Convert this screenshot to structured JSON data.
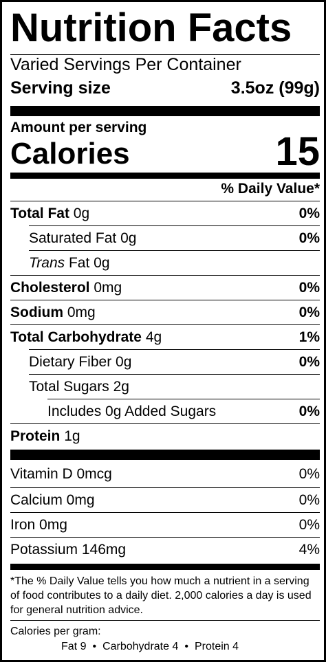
{
  "title": "Nutrition Facts",
  "servings_per_container": "Varied Servings Per Container",
  "serving_size": {
    "label": "Serving size",
    "value": "3.5oz (99g)"
  },
  "amount_per_serving": "Amount per serving",
  "calories": {
    "label": "Calories",
    "value": "15"
  },
  "daily_value_header": "% Daily Value*",
  "nutrients": {
    "total_fat": {
      "label": "Total Fat",
      "amount": "0g",
      "dv": "0%"
    },
    "saturated_fat": {
      "label": "Saturated Fat",
      "amount": "0g",
      "dv": "0%"
    },
    "trans_fat": {
      "label": "Trans",
      "label_suffix": "Fat",
      "amount": "0g"
    },
    "cholesterol": {
      "label": "Cholesterol",
      "amount": "0mg",
      "dv": "0%"
    },
    "sodium": {
      "label": "Sodium",
      "amount": "0mg",
      "dv": "0%"
    },
    "total_carbohydrate": {
      "label": "Total Carbohydrate",
      "amount": "4g",
      "dv": "1%"
    },
    "dietary_fiber": {
      "label": "Dietary Fiber",
      "amount": "0g",
      "dv": "0%"
    },
    "total_sugars": {
      "label": "Total Sugars",
      "amount": "2g"
    },
    "added_sugars": {
      "label": "Includes 0g Added Sugars",
      "dv": "0%"
    },
    "protein": {
      "label": "Protein",
      "amount": "1g"
    }
  },
  "vitamins": {
    "vitamin_d": {
      "label": "Vitamin D 0mcg",
      "dv": "0%"
    },
    "calcium": {
      "label": "Calcium 0mg",
      "dv": "0%"
    },
    "iron": {
      "label": "Iron 0mg",
      "dv": "0%"
    },
    "potassium": {
      "label": "Potassium 146mg",
      "dv": "4%"
    }
  },
  "footnote": "*The % Daily Value tells you how much a nutrient in a serving of food contributes to a daily diet. 2,000 calories a day is used for general nutrition advice.",
  "calories_per_gram": {
    "label": "Calories per gram:",
    "fat": "Fat 9",
    "carbohydrate": "Carbohydrate 4",
    "protein": "Protein 4",
    "separator": "•"
  }
}
